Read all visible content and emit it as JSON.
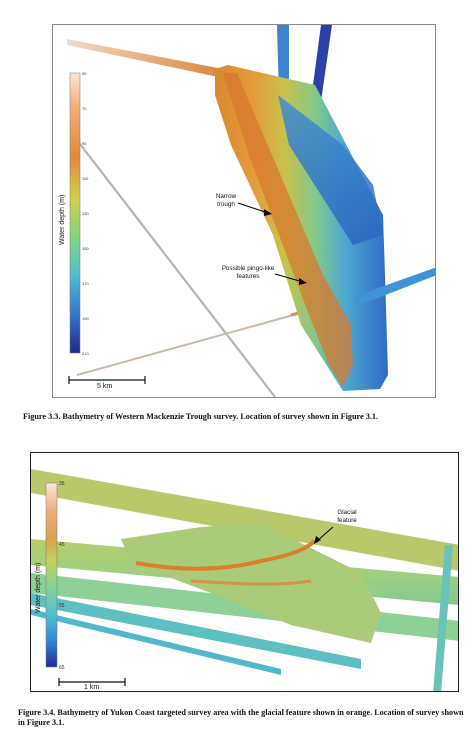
{
  "figure1": {
    "colorbar": {
      "label": "Water depth (m)",
      "ticks": [
        "50",
        "70",
        "90",
        "110",
        "130",
        "150",
        "170",
        "190",
        "210"
      ]
    },
    "annotations": {
      "narrow_trough": "Narrow\ntrough",
      "pingo": "Possible pingo-like\nfeatures"
    },
    "scale_label": "5 km",
    "caption": "Figure 3.3. Bathymetry of Western Mackenzie Trough survey. Location of survey shown in Figure 3.1."
  },
  "figure2": {
    "colorbar": {
      "label": "Water depth (m)",
      "ticks": [
        "35",
        "45",
        "55",
        "65"
      ]
    },
    "annotations": {
      "glacial": "Glacial\nfeature"
    },
    "scale_label": "1 km",
    "caption": "Figure 3.4. Bathymetry of Yukon Coast targeted survey area with the glacial feature shown in orange. Location of survey shown in Figure 3.1."
  },
  "colors": {
    "shallow": "#f3c9a8",
    "orange": "#e0893a",
    "yellow": "#d8c850",
    "green": "#8ccf78",
    "cyan": "#4fb3c8",
    "blue": "#2f6fc8",
    "deep": "#1d2a8f"
  }
}
